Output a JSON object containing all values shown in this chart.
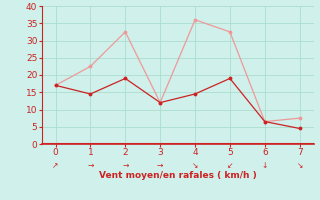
{
  "x": [
    0,
    1,
    2,
    3,
    4,
    5,
    6,
    7
  ],
  "wind_mean": [
    17,
    14.5,
    19,
    12,
    14.5,
    19,
    6.5,
    4.5
  ],
  "wind_gust": [
    17,
    22.5,
    32.5,
    12,
    36,
    32.5,
    6.5,
    7.5
  ],
  "line_color_mean": "#cc2222",
  "line_color_gust": "#ee9999",
  "marker_color_mean": "#cc2222",
  "marker_color_gust": "#ee9999",
  "xlabel": "Vent moyen/en rafales ( km/h )",
  "xlabel_color": "#cc2222",
  "bg_color": "#cff0eb",
  "grid_color": "#aaddcc",
  "axis_color": "#cc2222",
  "tick_label_color": "#cc2222",
  "ylim": [
    0,
    40
  ],
  "xlim": [
    -0.4,
    7.4
  ],
  "yticks": [
    0,
    5,
    10,
    15,
    20,
    25,
    30,
    35,
    40
  ],
  "xticks": [
    0,
    1,
    2,
    3,
    4,
    5,
    6,
    7
  ],
  "arrow_chars": [
    "↗",
    "→",
    "→",
    "→",
    "↘",
    "↙",
    "↓",
    "↘"
  ]
}
